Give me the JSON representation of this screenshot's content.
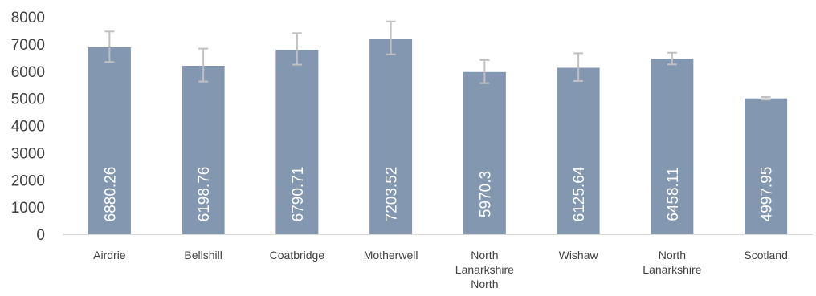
{
  "chart_data": {
    "type": "bar",
    "title": "",
    "xlabel": "",
    "ylabel": "",
    "ylim": [
      0,
      8000
    ],
    "yticks": [
      0,
      1000,
      2000,
      3000,
      4000,
      5000,
      6000,
      7000,
      8000
    ],
    "grid": false,
    "legend": "none",
    "bar_color": "#8497b0",
    "errorbar_color": "#c0c0c0",
    "categories": [
      [
        "Airdrie"
      ],
      [
        "Bellshill"
      ],
      [
        "Coatbridge"
      ],
      [
        "Motherwell"
      ],
      [
        "North",
        "Lanarkshire",
        "North"
      ],
      [
        "Wishaw"
      ],
      [
        "North",
        "Lanarkshire"
      ],
      [
        "Scotland"
      ]
    ],
    "values": [
      6880.26,
      6198.76,
      6790.71,
      7203.52,
      5970.3,
      6125.64,
      6458.11,
      4997.95
    ],
    "data_labels": [
      "6880.26",
      "6198.76",
      "6790.71",
      "7203.52",
      "5970.3",
      "6125.64",
      "6458.11",
      "4997.95"
    ],
    "error_low": [
      6340,
      5620,
      6240,
      6620,
      5560,
      5640,
      6250,
      4950
    ],
    "error_high": [
      7460,
      6830,
      7400,
      7830,
      6410,
      6660,
      6680,
      5050
    ]
  }
}
